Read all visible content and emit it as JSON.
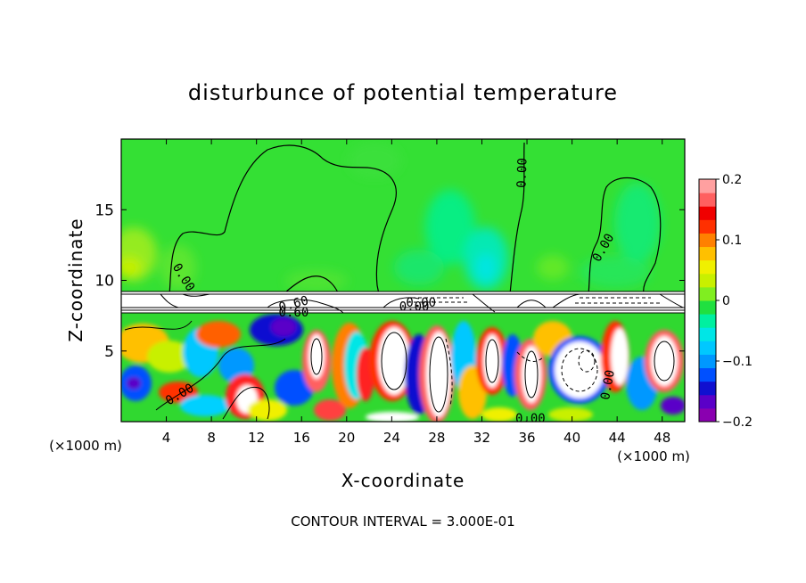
{
  "chart_data": {
    "type": "heatmap",
    "title": "disturbunce of potential temperature",
    "xlabel": "X-coordinate",
    "ylabel": "Z-coordinate",
    "x_unit": "(×1000 m)",
    "x_unit_right": "(×1000 m)",
    "xlim": [
      0,
      50
    ],
    "ylim": [
      0,
      20
    ],
    "x_ticks": [
      4,
      8,
      12,
      16,
      20,
      24,
      28,
      32,
      36,
      40,
      44,
      48
    ],
    "y_ticks": [
      5,
      10,
      15
    ],
    "x_tick_labels": [
      "4",
      "8",
      "12",
      "16",
      "20",
      "24",
      "28",
      "32",
      "36",
      "40",
      "44",
      "48"
    ],
    "y_tick_labels": [
      "5",
      "10",
      "15"
    ],
    "colorbar": {
      "min": -0.2,
      "max": 0.2,
      "tick_labels": [
        "0.2",
        "0.1",
        "0",
        "−0.1",
        "−0.2"
      ],
      "tick_values": [
        0.2,
        0.1,
        0,
        -0.1,
        -0.2
      ],
      "colors": [
        "#8a00b0",
        "#5a00c8",
        "#1010d0",
        "#0050ff",
        "#0098ff",
        "#00c8ff",
        "#00e6e6",
        "#00f0a0",
        "#20e040",
        "#80ee20",
        "#c8f000",
        "#f0f000",
        "#ffc000",
        "#ff8000",
        "#ff3000",
        "#f00000",
        "#ff6060",
        "#ffa0a0"
      ]
    },
    "contour_labels": [
      {
        "text": "0.00",
        "x": 5.5,
        "y": 10.2,
        "rot": 58
      },
      {
        "text": "0.00",
        "x": 35.6,
        "y": 17.6,
        "rot": -88
      },
      {
        "text": "0.00",
        "x": 42.8,
        "y": 12.3,
        "rot": -60
      },
      {
        "text": "0.60",
        "x": 15.3,
        "y": 8.3,
        "rot": -15
      },
      {
        "text": "0.60",
        "x": 15.3,
        "y": 7.7,
        "rot": 0
      },
      {
        "text": "0.00",
        "x": 26.0,
        "y": 8.1,
        "rot": 0
      },
      {
        "text": "0.00",
        "x": 26.6,
        "y": 8.4,
        "rot": 0
      },
      {
        "text": "0.00",
        "x": 5.2,
        "y": 1.9,
        "rot": -30
      },
      {
        "text": "0.00",
        "x": 43.2,
        "y": 2.6,
        "rot": -80
      },
      {
        "text": "0.00",
        "x": 36.3,
        "y": 0.2,
        "rot": 0
      }
    ],
    "annotation": "CONTOUR INTERVAL = 3.000E-01"
  }
}
